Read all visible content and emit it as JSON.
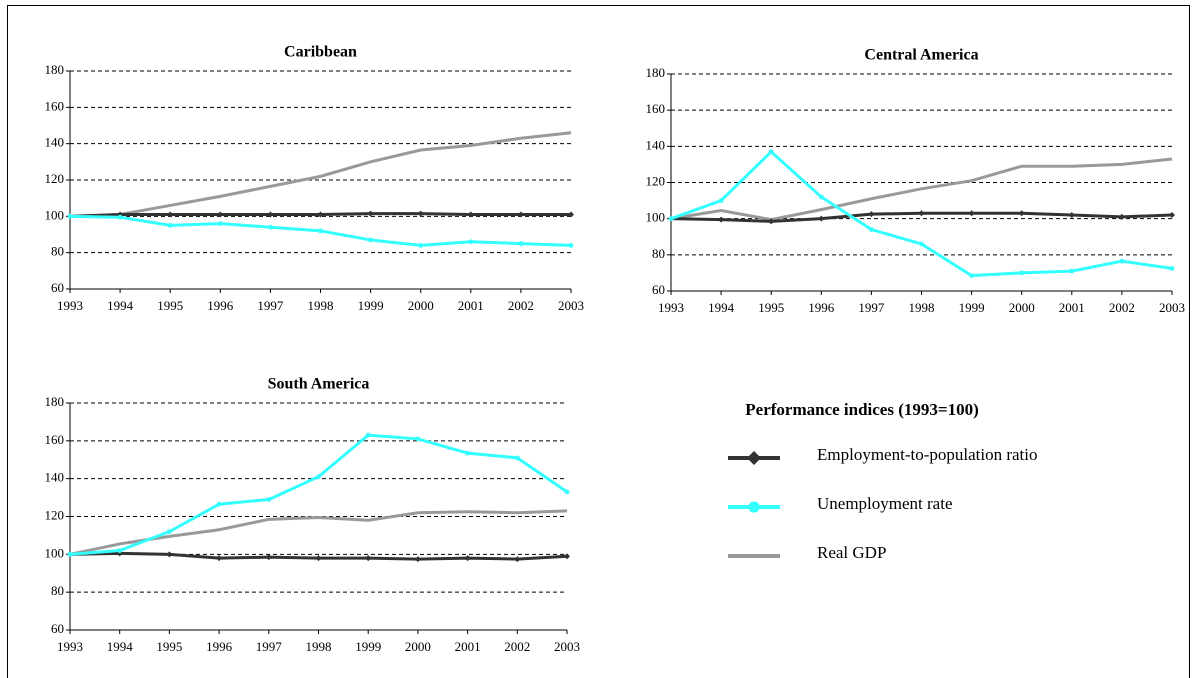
{
  "chart_data": [
    {
      "type": "line",
      "title": "Caribbean",
      "categories": [
        "1993",
        "1994",
        "1995",
        "1996",
        "1997",
        "1998",
        "1999",
        "2000",
        "2001",
        "2002",
        "2003"
      ],
      "series": [
        {
          "values": [
            100,
            101,
            101,
            101,
            101,
            101,
            101.5,
            101.5,
            101,
            101,
            101
          ]
        },
        {
          "values": [
            100,
            99.5,
            95,
            96,
            94,
            92,
            87,
            84,
            86,
            85,
            84
          ]
        },
        {
          "values": [
            100,
            101,
            106,
            111,
            116.5,
            122,
            130,
            136.5,
            139,
            143,
            146
          ]
        }
      ],
      "ylim": [
        60,
        180
      ],
      "yticks": [
        60,
        80,
        100,
        120,
        140,
        160,
        180
      ],
      "grid": true
    },
    {
      "type": "line",
      "title": "Central America",
      "categories": [
        "1993",
        "1994",
        "1995",
        "1996",
        "1997",
        "1998",
        "1999",
        "2000",
        "2001",
        "2002",
        "2003"
      ],
      "series": [
        {
          "values": [
            100,
            99.5,
            98.5,
            100,
            102.5,
            103,
            103,
            103,
            102,
            101,
            102
          ]
        },
        {
          "values": [
            100,
            110,
            137,
            112,
            94,
            86,
            68.5,
            70,
            71,
            76.5,
            72.5
          ]
        },
        {
          "values": [
            100,
            104.5,
            99.5,
            105,
            111,
            116.5,
            121,
            129,
            129,
            130,
            133
          ]
        }
      ],
      "ylim": [
        60,
        180
      ],
      "yticks": [
        60,
        80,
        100,
        120,
        140,
        160,
        180
      ],
      "grid": true
    },
    {
      "type": "line",
      "title": "South America",
      "categories": [
        "1993",
        "1994",
        "1995",
        "1996",
        "1997",
        "1998",
        "1999",
        "2000",
        "2001",
        "2002",
        "2003"
      ],
      "series": [
        {
          "values": [
            100,
            100.5,
            100,
            98,
            98.5,
            98,
            98,
            97.5,
            98,
            97.5,
            99
          ]
        },
        {
          "values": [
            100,
            102,
            112,
            126.5,
            129,
            141,
            163,
            161,
            153.5,
            151,
            133
          ]
        },
        {
          "values": [
            100,
            105.5,
            109.5,
            113,
            118.5,
            119.5,
            118,
            122,
            122.5,
            122,
            123
          ]
        }
      ],
      "ylim": [
        60,
        180
      ],
      "yticks": [
        60,
        80,
        100,
        120,
        140,
        160,
        180
      ],
      "grid": true
    }
  ],
  "legend": {
    "title": "Performance indices (1993=100)",
    "series": [
      {
        "name": "Employment-to-population ratio",
        "color": "#333333",
        "marker": "diamond"
      },
      {
        "name": "Unemployment rate",
        "color": "#33ffff",
        "marker": "circle"
      },
      {
        "name": "Real GDP",
        "color": "#999999",
        "marker": "none"
      }
    ]
  }
}
